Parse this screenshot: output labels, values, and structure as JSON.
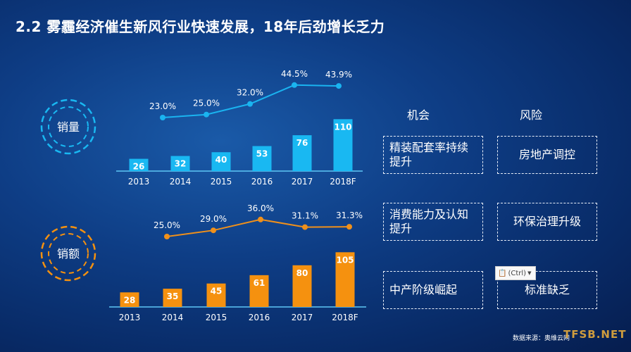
{
  "title": "2.2  雾霾经济催生新风行业快速发展，18年后劲增长乏力",
  "chart_data": [
    {
      "type": "bar",
      "label": "销量",
      "categories": [
        "2013",
        "2014",
        "2015",
        "2016",
        "2017",
        "2018F"
      ],
      "values": [
        26,
        32,
        40,
        53,
        76,
        110
      ],
      "line": {
        "categories": [
          "2014",
          "2015",
          "2016",
          "2017",
          "2018F"
        ],
        "values": [
          23.0,
          25.0,
          32.0,
          44.5,
          43.9
        ],
        "labels": [
          "23.0%",
          "25.0%",
          "32.0%",
          "44.5%",
          "43.9%"
        ]
      },
      "color": "#19b8f2",
      "line_color": "#1ab4f0"
    },
    {
      "type": "bar",
      "label": "销额",
      "categories": [
        "2013",
        "2014",
        "2015",
        "2016",
        "2017",
        "2018F"
      ],
      "values": [
        28,
        35,
        45,
        61,
        80,
        105
      ],
      "line": {
        "categories": [
          "2014",
          "2015",
          "2016",
          "2017",
          "2018F"
        ],
        "values": [
          25.0,
          29.0,
          36.0,
          31.1,
          31.3
        ],
        "labels": [
          "25.0%",
          "29.0%",
          "36.0%",
          "31.1%",
          "31.3%"
        ]
      },
      "color": "#f5910f",
      "line_color": "#f0901a"
    }
  ],
  "matrix": {
    "opportunity_header": "机会",
    "risk_header": "风险",
    "opportunities": [
      "精装配套率持续提升",
      "消费能力及认知提升",
      "中产阶级崛起"
    ],
    "risks": [
      "房地产调控",
      "环保治理升级",
      "标准缺乏"
    ]
  },
  "paste_button": "(Ctrl)",
  "source": "数据来源：奥维云网",
  "watermark": "TFSB.NET"
}
